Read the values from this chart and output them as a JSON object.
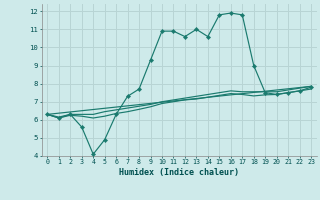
{
  "xlabel": "Humidex (Indice chaleur)",
  "background_color": "#ceeaea",
  "grid_color": "#b8d4d4",
  "line_color": "#1a7a6e",
  "xlim": [
    -0.5,
    23.5
  ],
  "ylim": [
    4,
    12.4
  ],
  "xticks": [
    0,
    1,
    2,
    3,
    4,
    5,
    6,
    7,
    8,
    9,
    10,
    11,
    12,
    13,
    14,
    15,
    16,
    17,
    18,
    19,
    20,
    21,
    22,
    23
  ],
  "yticks": [
    4,
    5,
    6,
    7,
    8,
    9,
    10,
    11,
    12
  ],
  "lines": [
    {
      "x": [
        0,
        1,
        2,
        3,
        4,
        5,
        6,
        7,
        8,
        9,
        10,
        11,
        12,
        13,
        14,
        15,
        16,
        17,
        18,
        19,
        20,
        21,
        22,
        23
      ],
      "y": [
        6.3,
        6.1,
        6.3,
        5.6,
        4.1,
        4.9,
        6.3,
        7.3,
        7.7,
        9.3,
        10.9,
        10.9,
        10.6,
        11.0,
        10.6,
        11.8,
        11.9,
        11.8,
        9.0,
        7.5,
        7.4,
        7.5,
        7.6,
        7.8
      ],
      "marker": true
    },
    {
      "x": [
        0,
        1,
        2,
        3,
        4,
        5,
        6,
        7,
        8,
        9,
        10,
        11,
        12,
        13,
        14,
        15,
        16,
        17,
        18,
        19,
        20,
        21,
        22,
        23
      ],
      "y": [
        6.3,
        6.15,
        6.3,
        6.3,
        6.3,
        6.45,
        6.55,
        6.65,
        6.75,
        6.85,
        7.0,
        7.1,
        7.2,
        7.3,
        7.4,
        7.5,
        7.6,
        7.55,
        7.55,
        7.55,
        7.55,
        7.65,
        7.75,
        7.85
      ],
      "marker": false
    },
    {
      "x": [
        0,
        1,
        2,
        3,
        4,
        5,
        6,
        7,
        8,
        9,
        10,
        11,
        12,
        13,
        14,
        15,
        16,
        17,
        18,
        19,
        20,
        21,
        22,
        23
      ],
      "y": [
        6.3,
        6.1,
        6.25,
        6.2,
        6.1,
        6.2,
        6.35,
        6.45,
        6.58,
        6.72,
        6.9,
        7.0,
        7.1,
        7.15,
        7.25,
        7.35,
        7.45,
        7.4,
        7.32,
        7.38,
        7.4,
        7.5,
        7.6,
        7.7
      ],
      "marker": false
    },
    {
      "x": [
        0,
        23
      ],
      "y": [
        6.3,
        7.85
      ],
      "marker": false
    }
  ]
}
